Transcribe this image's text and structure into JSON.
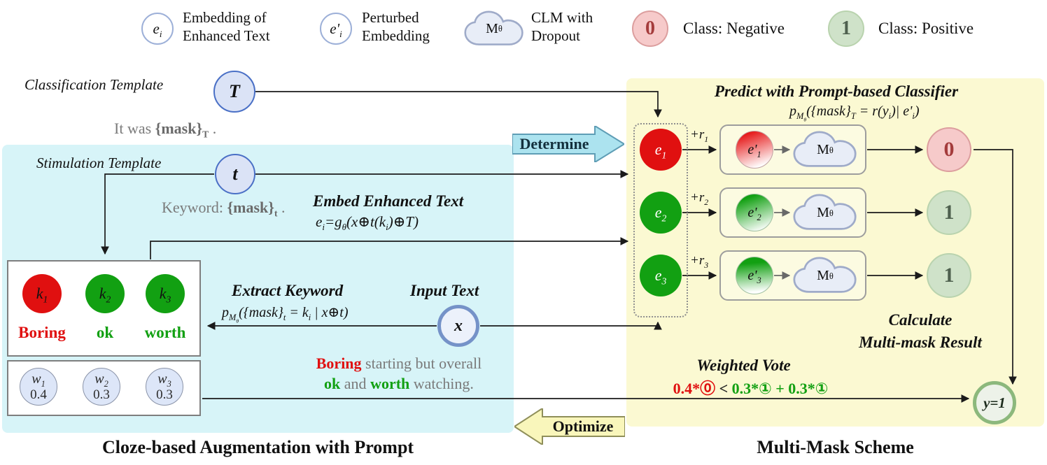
{
  "colors": {
    "negative_red": "#e01010",
    "positive_green": "#12a012",
    "augmentation_panel_bg": "#d7f4f8",
    "multimask_panel_bg": "#fbf9d2",
    "determine_arrow_fill": "#ace3ef",
    "optimize_arrow_fill": "#f9f6bb",
    "node_blue_fill": "#dbe3f6",
    "node_blue_border": "#4a70c6"
  },
  "legend": {
    "embedding": {
      "symbol_html": "e<sub>i</sub>",
      "line1": "Embedding of",
      "line2": "Enhanced Text"
    },
    "perturbed": {
      "symbol_html": "e'<sub>i</sub>",
      "line1": "Perturbed",
      "line2": "Embedding"
    },
    "clm": {
      "symbol_html": "M<sub>θ</sub>",
      "line1": "CLM with",
      "line2": "Dropout"
    },
    "negative": {
      "symbol": "0",
      "label": "Class: Negative"
    },
    "positive": {
      "symbol": "1",
      "label": "Class: Positive"
    }
  },
  "left_panel": {
    "classification_template_label": "Classification Template",
    "classification_node": "T",
    "classification_example_html": "It was <b>{mask}<sub>T</sub></b> .",
    "stimulation_template_label": "Stimulation Template",
    "stimulation_node": "t",
    "stimulation_example_html": "Keyword: <b>{mask}<sub>t</sub></b> .",
    "embed_heading": "Embed Enhanced Text",
    "embed_formula_html": "e<sub>i</sub>=g<sub>θ</sub>(x⊕t(k<sub>i</sub>)⊕T)",
    "extract_heading": "Extract Keyword",
    "extract_formula_html": "p<sub>M<sub>θ</sub></sub>({mask}<sub>t</sub> = k<sub>i</sub> | x⊕t)",
    "input_heading": "Input Text",
    "input_node": "x",
    "keywords": [
      {
        "id_html": "k<sub>1</sub>",
        "word": "Boring"
      },
      {
        "id_html": "k<sub>2</sub>",
        "word": "ok"
      },
      {
        "id_html": "k<sub>3</sub>",
        "word": "worth"
      }
    ],
    "weights": [
      {
        "id_html": "w<sub>1</sub>",
        "value": "0.4"
      },
      {
        "id_html": "w<sub>2</sub>",
        "value": "0.3"
      },
      {
        "id_html": "w<sub>3</sub>",
        "value": "0.3"
      }
    ],
    "sentence": {
      "kw1": "Boring",
      "mid1": " starting but overall",
      "kw2": "ok",
      "mid2": " and ",
      "kw3": "worth",
      "end": " watching."
    },
    "caption": "Cloze-based Augmentation with Prompt"
  },
  "flow_arrows": {
    "determine": "Determine",
    "optimize": "Optimize"
  },
  "right_panel": {
    "title": "Predict with Prompt-based Classifier",
    "formula_html": "p<sub>M<sub>θ</sub></sub>({mask}<sub>T</sub> = r(y<sub>i</sub>)| e'<sub>i</sub>)",
    "rows": [
      {
        "e_html": "e<sub>1</sub>",
        "r_html": "+r<sub>1</sub>",
        "ep_html": "e'<sub>1</sub>",
        "clm_html": "M<sub>θ</sub>",
        "output": "0"
      },
      {
        "e_html": "e<sub>2</sub>",
        "r_html": "+r<sub>2</sub>",
        "ep_html": "e'<sub>2</sub>",
        "clm_html": "M<sub>θ</sub>",
        "output": "1"
      },
      {
        "e_html": "e<sub>3</sub>",
        "r_html": "+r<sub>3</sub>",
        "ep_html": "e'<sub>3</sub>",
        "clm_html": "M<sub>θ</sub>",
        "output": "1"
      }
    ],
    "calculate_line1": "Calculate",
    "calculate_line2": "Multi-mask Result",
    "weighted_vote_heading": "Weighted Vote",
    "vote": {
      "negative": "0.4*⓪",
      "comparator": "<",
      "positive": "0.3*① + 0.3*①"
    },
    "result": "y=1",
    "caption": "Multi-Mask Scheme"
  }
}
